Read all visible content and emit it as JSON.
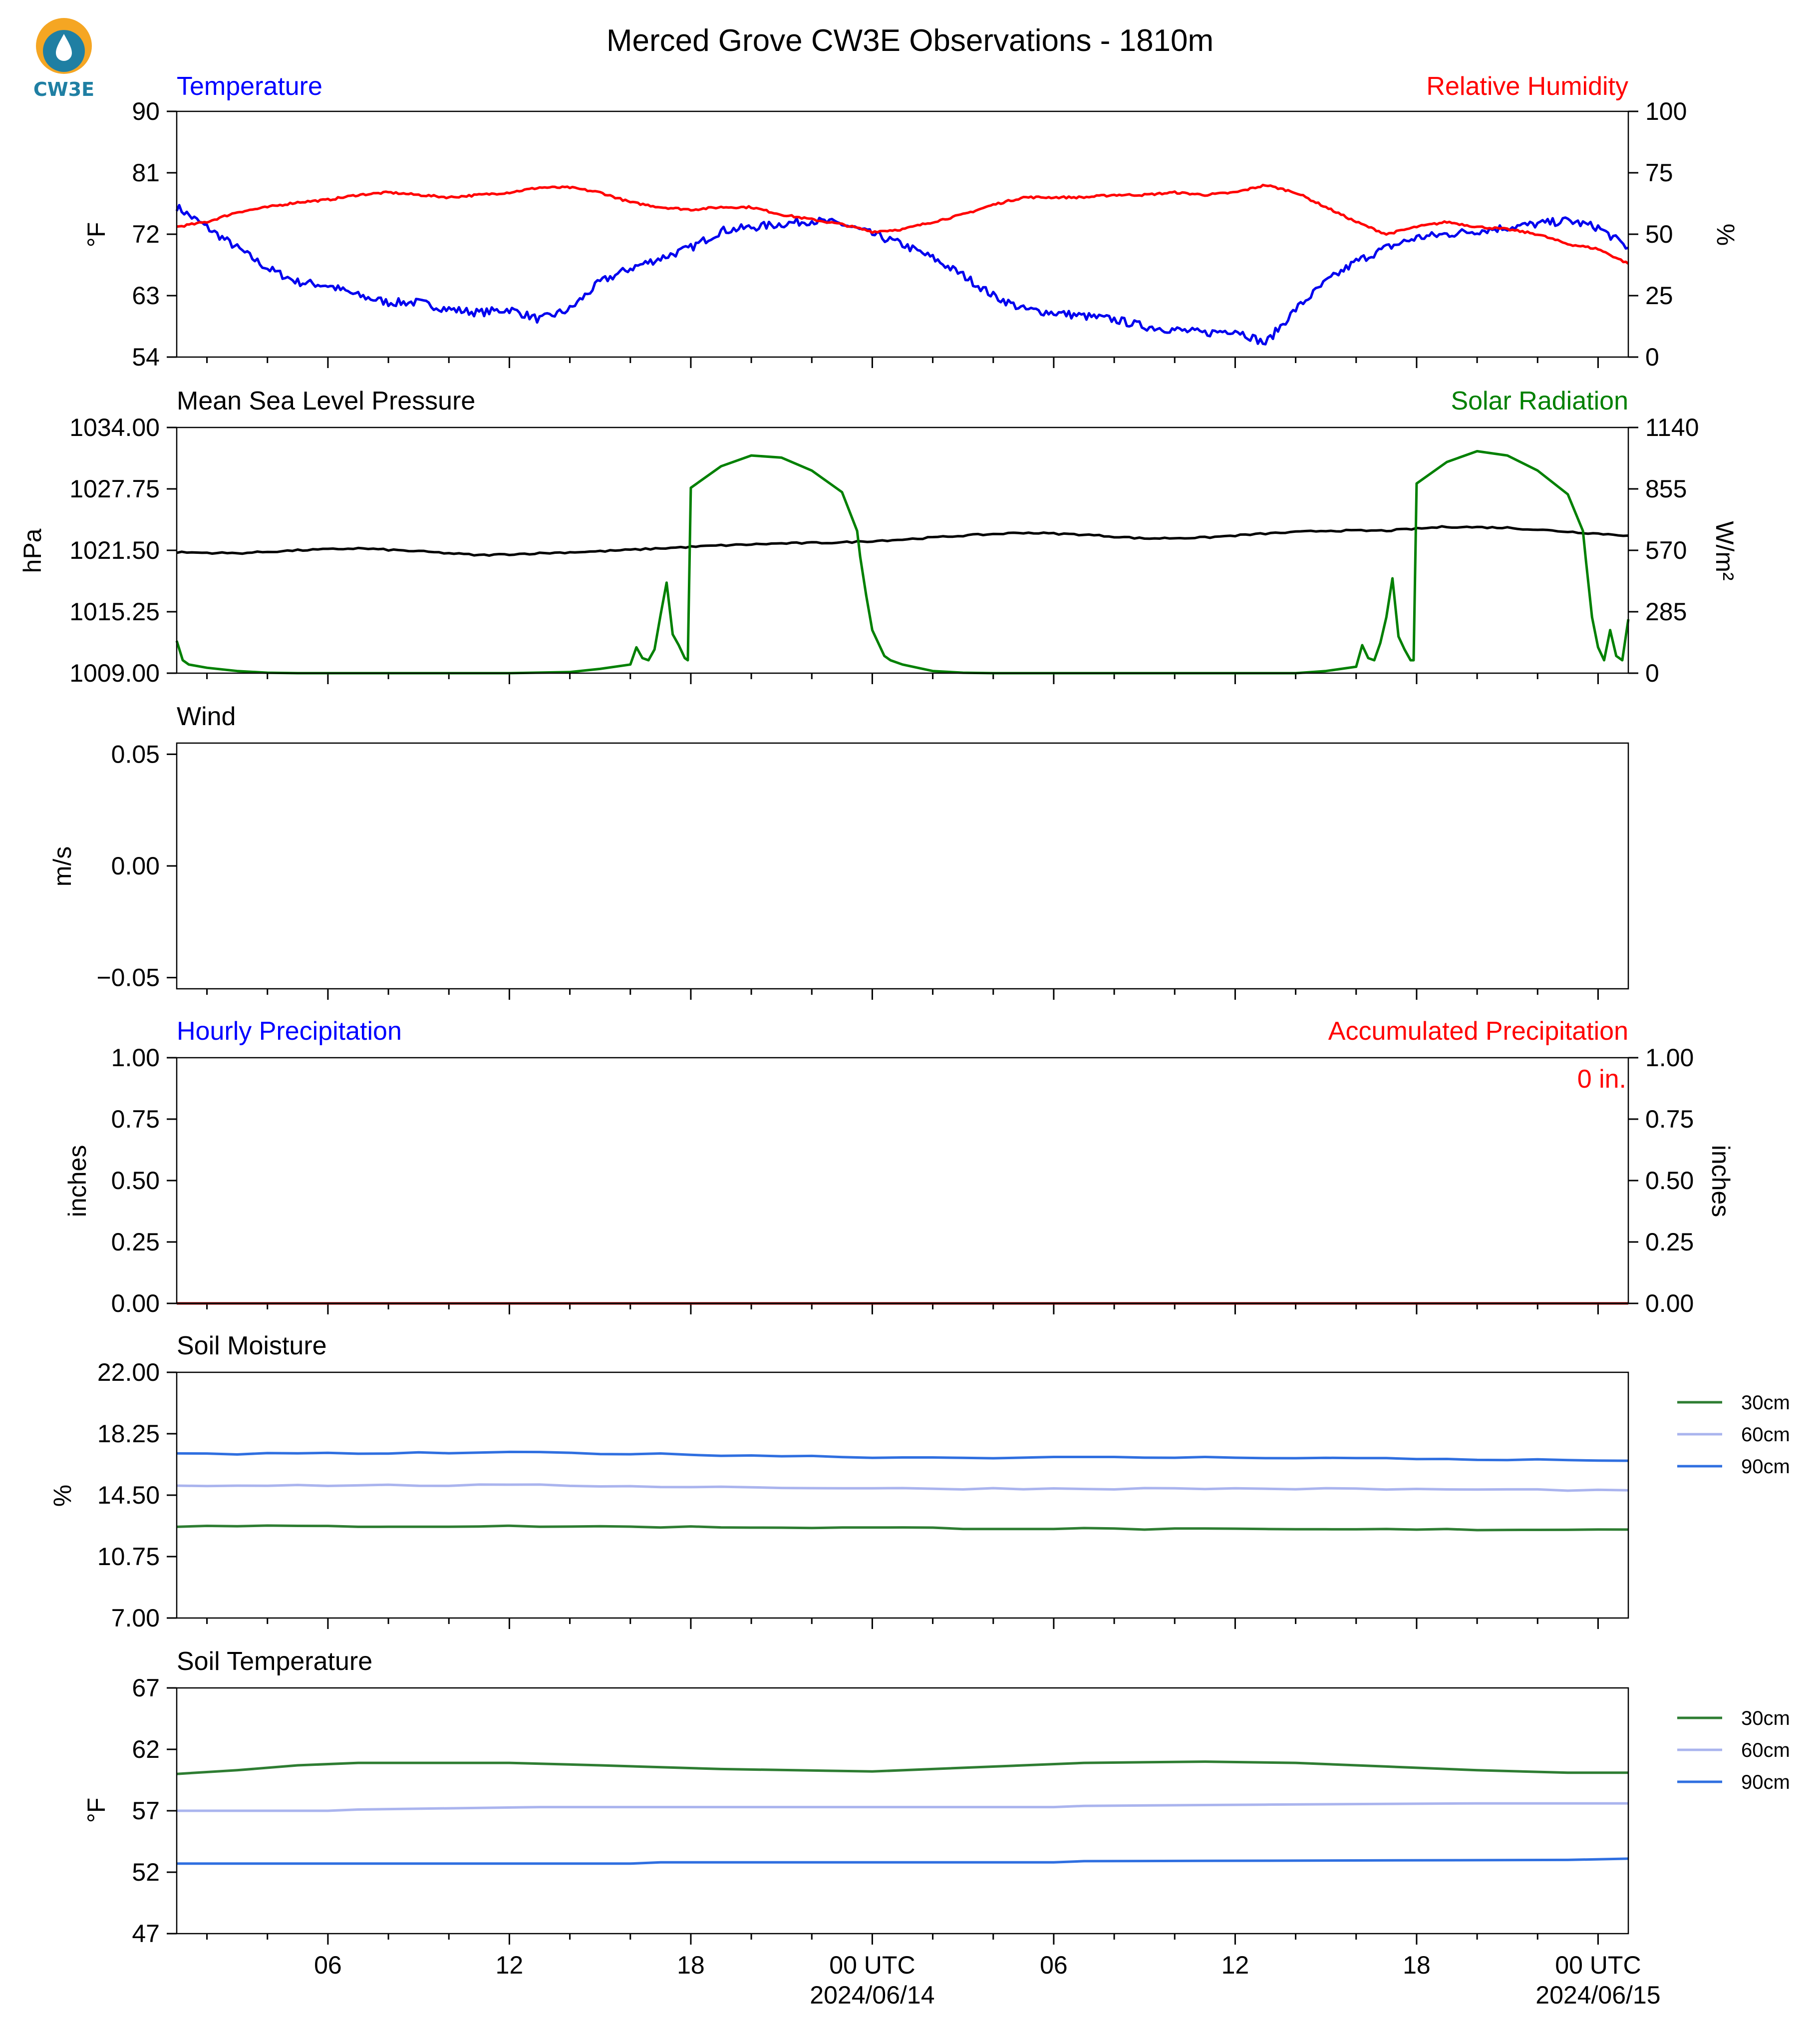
{
  "logo": {
    "text": "CW3E",
    "color": "#1f7fa3",
    "accent": "#f5a623"
  },
  "figure_title": "Merced Grove CW3E Observations - 1810m",
  "x_axis": {
    "tick_labels": [
      "06",
      "12",
      "18",
      "00 UTC",
      "06",
      "12",
      "18",
      "00 UTC"
    ],
    "tick_hours": [
      6,
      12,
      18,
      24,
      30,
      36,
      42,
      48
    ],
    "date_labels": [
      {
        "text": "2024/06/14",
        "hour": 24
      },
      {
        "text": "2024/06/15",
        "hour": 48
      }
    ],
    "range_hours": [
      1,
      49
    ]
  },
  "chart_data": [
    {
      "id": "temperature",
      "type": "line",
      "title": "Temperature",
      "title_color": "#0000ff",
      "right_title": "Relative Humidity",
      "right_title_color": "#ff0000",
      "ylabel": "°F",
      "ylim": [
        54,
        90
      ],
      "yticks": [
        "90",
        "81",
        "72",
        "63",
        "54"
      ],
      "y2label": "%",
      "y2lim": [
        0,
        100
      ],
      "y2ticks": [
        "100",
        "75",
        "50",
        "25",
        "0"
      ],
      "series": [
        {
          "name": "Temperature",
          "axis": "left",
          "color": "#0000ee",
          "noise": 0.6,
          "x": [
            1,
            2,
            3,
            4,
            5,
            6,
            7,
            8,
            9,
            10,
            11,
            12,
            13,
            14,
            15,
            16,
            17,
            18,
            19,
            20,
            21,
            22,
            23,
            24,
            25,
            26,
            27,
            28,
            29,
            30,
            31,
            32,
            33,
            34,
            35,
            36,
            37,
            38,
            39,
            40,
            41,
            42,
            43,
            44,
            45,
            46,
            47,
            48,
            49
          ],
          "y": [
            76,
            73,
            70,
            67,
            65,
            64.5,
            63,
            62,
            62,
            61,
            60.5,
            61,
            59.5,
            61,
            65,
            67,
            68.5,
            70,
            72.5,
            73,
            73.5,
            74,
            73.5,
            72,
            70.5,
            68.5,
            66,
            63,
            61,
            60.5,
            60,
            59.5,
            58.5,
            58,
            57.5,
            58,
            56,
            61,
            65,
            68,
            70,
            71.5,
            72,
            72.5,
            73,
            73.5,
            74,
            73,
            70
          ]
        },
        {
          "name": "Relative Humidity",
          "axis": "right",
          "color": "#ff0000",
          "noise": 0.4,
          "x": [
            1,
            2,
            3,
            4,
            5,
            6,
            7,
            8,
            9,
            10,
            11,
            12,
            13,
            14,
            15,
            16,
            17,
            18,
            19,
            20,
            21,
            22,
            23,
            24,
            25,
            26,
            27,
            28,
            29,
            30,
            31,
            32,
            33,
            34,
            35,
            36,
            37,
            38,
            39,
            40,
            41,
            42,
            43,
            44,
            45,
            46,
            47,
            48,
            49
          ],
          "y": [
            53,
            55,
            59,
            61,
            63,
            64,
            66,
            67,
            66,
            65,
            66,
            67,
            69,
            69,
            67,
            63,
            61,
            60,
            61,
            61,
            58,
            56,
            54,
            51,
            52,
            55,
            58,
            62,
            65,
            65,
            65,
            66,
            66,
            67,
            66,
            67,
            70,
            67,
            61,
            55,
            50,
            53,
            55,
            53,
            52,
            50,
            46,
            44,
            38
          ]
        }
      ]
    },
    {
      "id": "pressure",
      "type": "line",
      "title": "Mean Sea Level Pressure",
      "title_color": "#000000",
      "right_title": "Solar Radiation",
      "right_title_color": "#008000",
      "ylabel": "hPa",
      "ylim": [
        1009,
        1034
      ],
      "yticks": [
        "1034.00",
        "1027.75",
        "1021.50",
        "1015.25",
        "1009.00"
      ],
      "y2label": "W/m²",
      "y2lim": [
        0,
        1140
      ],
      "y2ticks": [
        "1140",
        "855",
        "570",
        "285",
        "0"
      ],
      "series": [
        {
          "name": "Mean Sea Level Pressure",
          "axis": "left",
          "color": "#000000",
          "noise": 0.08,
          "x": [
            1,
            3,
            5,
            7,
            9,
            11,
            13,
            15,
            17,
            19,
            21,
            23,
            25,
            27,
            29,
            31,
            33,
            35,
            37,
            39,
            41,
            43,
            45,
            47,
            49
          ],
          "y": [
            1021.3,
            1021.2,
            1021.5,
            1021.7,
            1021.4,
            1021.0,
            1021.2,
            1021.4,
            1021.7,
            1022.0,
            1022.2,
            1022.3,
            1022.6,
            1023.0,
            1023.3,
            1023.1,
            1022.7,
            1022.8,
            1023.2,
            1023.5,
            1023.5,
            1023.9,
            1023.8,
            1023.4,
            1023.0
          ]
        },
        {
          "name": "Solar Radiation",
          "axis": "right",
          "color": "#008000",
          "noise": 0,
          "x": [
            1,
            1.2,
            1.4,
            2,
            3,
            4,
            5,
            6,
            10,
            12,
            14,
            15,
            16,
            16.2,
            16.4,
            16.6,
            16.8,
            17,
            17.2,
            17.4,
            17.6,
            17.8,
            17.9,
            18.0,
            19,
            20,
            21,
            22,
            23,
            23.5,
            23.6,
            23.8,
            24,
            24.2,
            24.4,
            24.6,
            25,
            26,
            27,
            28,
            30,
            34,
            38,
            39,
            40,
            40.2,
            40.4,
            40.6,
            40.8,
            41,
            41.2,
            41.4,
            41.6,
            41.8,
            41.9,
            42.0,
            43,
            44,
            45,
            46,
            47,
            47.5,
            47.6,
            47.8,
            48,
            48.2,
            48.4,
            48.6,
            48.8,
            49
          ],
          "y": [
            150,
            60,
            40,
            25,
            10,
            2,
            0,
            0,
            0,
            0,
            5,
            20,
            40,
            120,
            70,
            60,
            110,
            270,
            420,
            180,
            130,
            70,
            60,
            860,
            960,
            1010,
            1000,
            940,
            840,
            660,
            540,
            360,
            200,
            140,
            80,
            60,
            40,
            10,
            2,
            0,
            0,
            0,
            0,
            10,
            30,
            130,
            70,
            60,
            140,
            260,
            440,
            170,
            110,
            60,
            60,
            880,
            980,
            1030,
            1010,
            940,
            830,
            660,
            520,
            260,
            120,
            60,
            200,
            80,
            60,
            250
          ]
        }
      ]
    },
    {
      "id": "wind",
      "type": "line",
      "title": "Wind",
      "title_color": "#000000",
      "ylabel": "m/s",
      "ylim": [
        -0.055,
        0.055
      ],
      "yticks": [
        "0.05",
        "0.00",
        "−0.05"
      ],
      "ytick_values": [
        0.05,
        0,
        -0.05
      ],
      "series": []
    },
    {
      "id": "precip",
      "type": "line",
      "title": "Hourly Precipitation",
      "title_color": "#0000ff",
      "right_title": "Accumulated Precipitation",
      "right_title_color": "#ff0000",
      "annotation": "0 in.",
      "ylabel": "inches",
      "ylim": [
        0,
        1
      ],
      "yticks": [
        "1.00",
        "0.75",
        "0.50",
        "0.25",
        "0.00"
      ],
      "y2label": "inches",
      "y2lim": [
        0,
        1
      ],
      "y2ticks": [
        "1.00",
        "0.75",
        "0.50",
        "0.25",
        "0.00"
      ],
      "series": [
        {
          "name": "Accumulated Precipitation",
          "axis": "left",
          "color": "#8b0000",
          "noise": 0,
          "x": [
            1,
            49
          ],
          "y": [
            0,
            0
          ]
        }
      ]
    },
    {
      "id": "soil_moisture",
      "type": "line",
      "title": "Soil Moisture",
      "title_color": "#000000",
      "ylabel": "%",
      "ylim": [
        7,
        22
      ],
      "yticks": [
        "22.00",
        "18.25",
        "14.50",
        "10.75",
        "7.00"
      ],
      "legend": [
        "30cm",
        "60cm",
        "90cm"
      ],
      "series": [
        {
          "name": "30cm",
          "axis": "left",
          "color": "#2e7d32",
          "noise": 0.05,
          "x": [
            1,
            13,
            25,
            37,
            49
          ],
          "y": [
            12.6,
            12.6,
            12.5,
            12.4,
            12.4
          ]
        },
        {
          "name": "60cm",
          "axis": "left",
          "color": "#aab4ee",
          "noise": 0.05,
          "x": [
            1,
            13,
            25,
            37,
            49
          ],
          "y": [
            15.1,
            15.1,
            14.9,
            14.9,
            14.8
          ]
        },
        {
          "name": "90cm",
          "axis": "left",
          "color": "#2f6fe0",
          "noise": 0.05,
          "x": [
            1,
            13,
            25,
            37,
            49
          ],
          "y": [
            17.0,
            17.1,
            16.8,
            16.8,
            16.6
          ]
        }
      ]
    },
    {
      "id": "soil_temperature",
      "type": "line",
      "title": "Soil Temperature",
      "title_color": "#000000",
      "ylabel": "°F",
      "ylim": [
        47,
        67
      ],
      "yticks": [
        "67",
        "62",
        "57",
        "52",
        "47"
      ],
      "legend": [
        "30cm",
        "60cm",
        "90cm"
      ],
      "series": [
        {
          "name": "30cm",
          "axis": "left",
          "color": "#2e7d32",
          "noise": 0,
          "x": [
            1,
            3,
            5,
            7,
            12,
            15,
            19,
            24,
            26,
            29,
            31,
            35,
            38,
            41,
            44,
            47,
            49
          ],
          "y": [
            60.0,
            60.3,
            60.7,
            60.9,
            60.9,
            60.7,
            60.4,
            60.2,
            60.4,
            60.7,
            60.9,
            61.0,
            60.9,
            60.6,
            60.3,
            60.1,
            60.1
          ]
        },
        {
          "name": "60cm",
          "axis": "left",
          "color": "#aab4ee",
          "noise": 0,
          "x": [
            1,
            6,
            7,
            13,
            20,
            30,
            31,
            37,
            44,
            49
          ],
          "y": [
            57.0,
            57.0,
            57.1,
            57.3,
            57.3,
            57.3,
            57.4,
            57.5,
            57.6,
            57.6
          ]
        },
        {
          "name": "90cm",
          "axis": "left",
          "color": "#2f6fe0",
          "noise": 0,
          "x": [
            1,
            16,
            17,
            30,
            31,
            47,
            49
          ],
          "y": [
            52.7,
            52.7,
            52.8,
            52.8,
            52.9,
            53.0,
            53.1
          ]
        }
      ]
    }
  ]
}
